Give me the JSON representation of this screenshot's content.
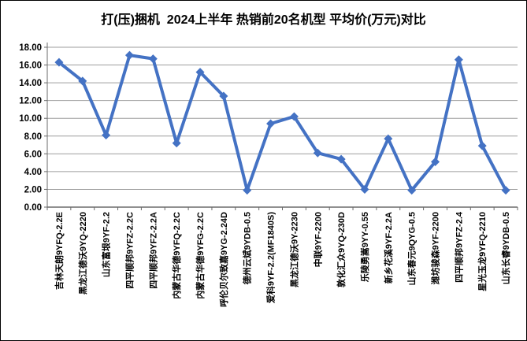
{
  "chart_data": {
    "type": "line",
    "title": "打(压)捆机  2024上半年 热销前20名机型 平均价(万元)对比",
    "categories": [
      "吉林天朗9YFQ-2.2E",
      "黑龙江德沃9YQ-2220",
      "山东富垠9YF-2.2",
      "四平顺邦9YFZ-2.2C",
      "四平顺邦9YFZ-2.2A",
      "内蒙古华德9YFQ-2.2C",
      "内蒙古华德9YFG-2.2C",
      "呼伦贝尔致嘉9YG-2.24D",
      "德州云斌9YDB-0.5",
      "爱科9YF-2.2(MF1840S)",
      "黑龙江德沃9Y-2230",
      "中联9YF-2200",
      "敦化汇众9YQ-230D",
      "乐陵勇嵩9YY-0.55",
      "新乡花溪9YF-2.2A",
      "山东春元9QYG-0.5",
      "潍坊骏森9YF-2200",
      "四平顺邦9YFZ-2.4",
      "星光玉龙9YFQ-2210",
      "山东长睿9YDB-0.5"
    ],
    "values": [
      16.3,
      14.2,
      8.1,
      17.1,
      16.7,
      7.2,
      15.2,
      12.5,
      1.9,
      9.4,
      10.2,
      6.1,
      5.4,
      2.0,
      7.7,
      1.9,
      5.1,
      16.6,
      6.9,
      1.9
    ],
    "xlabel": "",
    "ylabel": "",
    "ylim": [
      0,
      18
    ],
    "ytick_step": 2,
    "ytick_labels": [
      "0.00",
      "2.00",
      "4.00",
      "6.00",
      "8.00",
      "10.00",
      "12.00",
      "14.00",
      "16.00",
      "18.00"
    ],
    "grid": true,
    "legend_position": "none",
    "marker": "diamond",
    "colors": {
      "line": "#4472C4",
      "marker": "#4472C4",
      "gridline": "#9e9e9e",
      "axis": "#6b6b6b",
      "text": "#000000",
      "background": "#ffffff",
      "frame_border": "#000000"
    }
  }
}
